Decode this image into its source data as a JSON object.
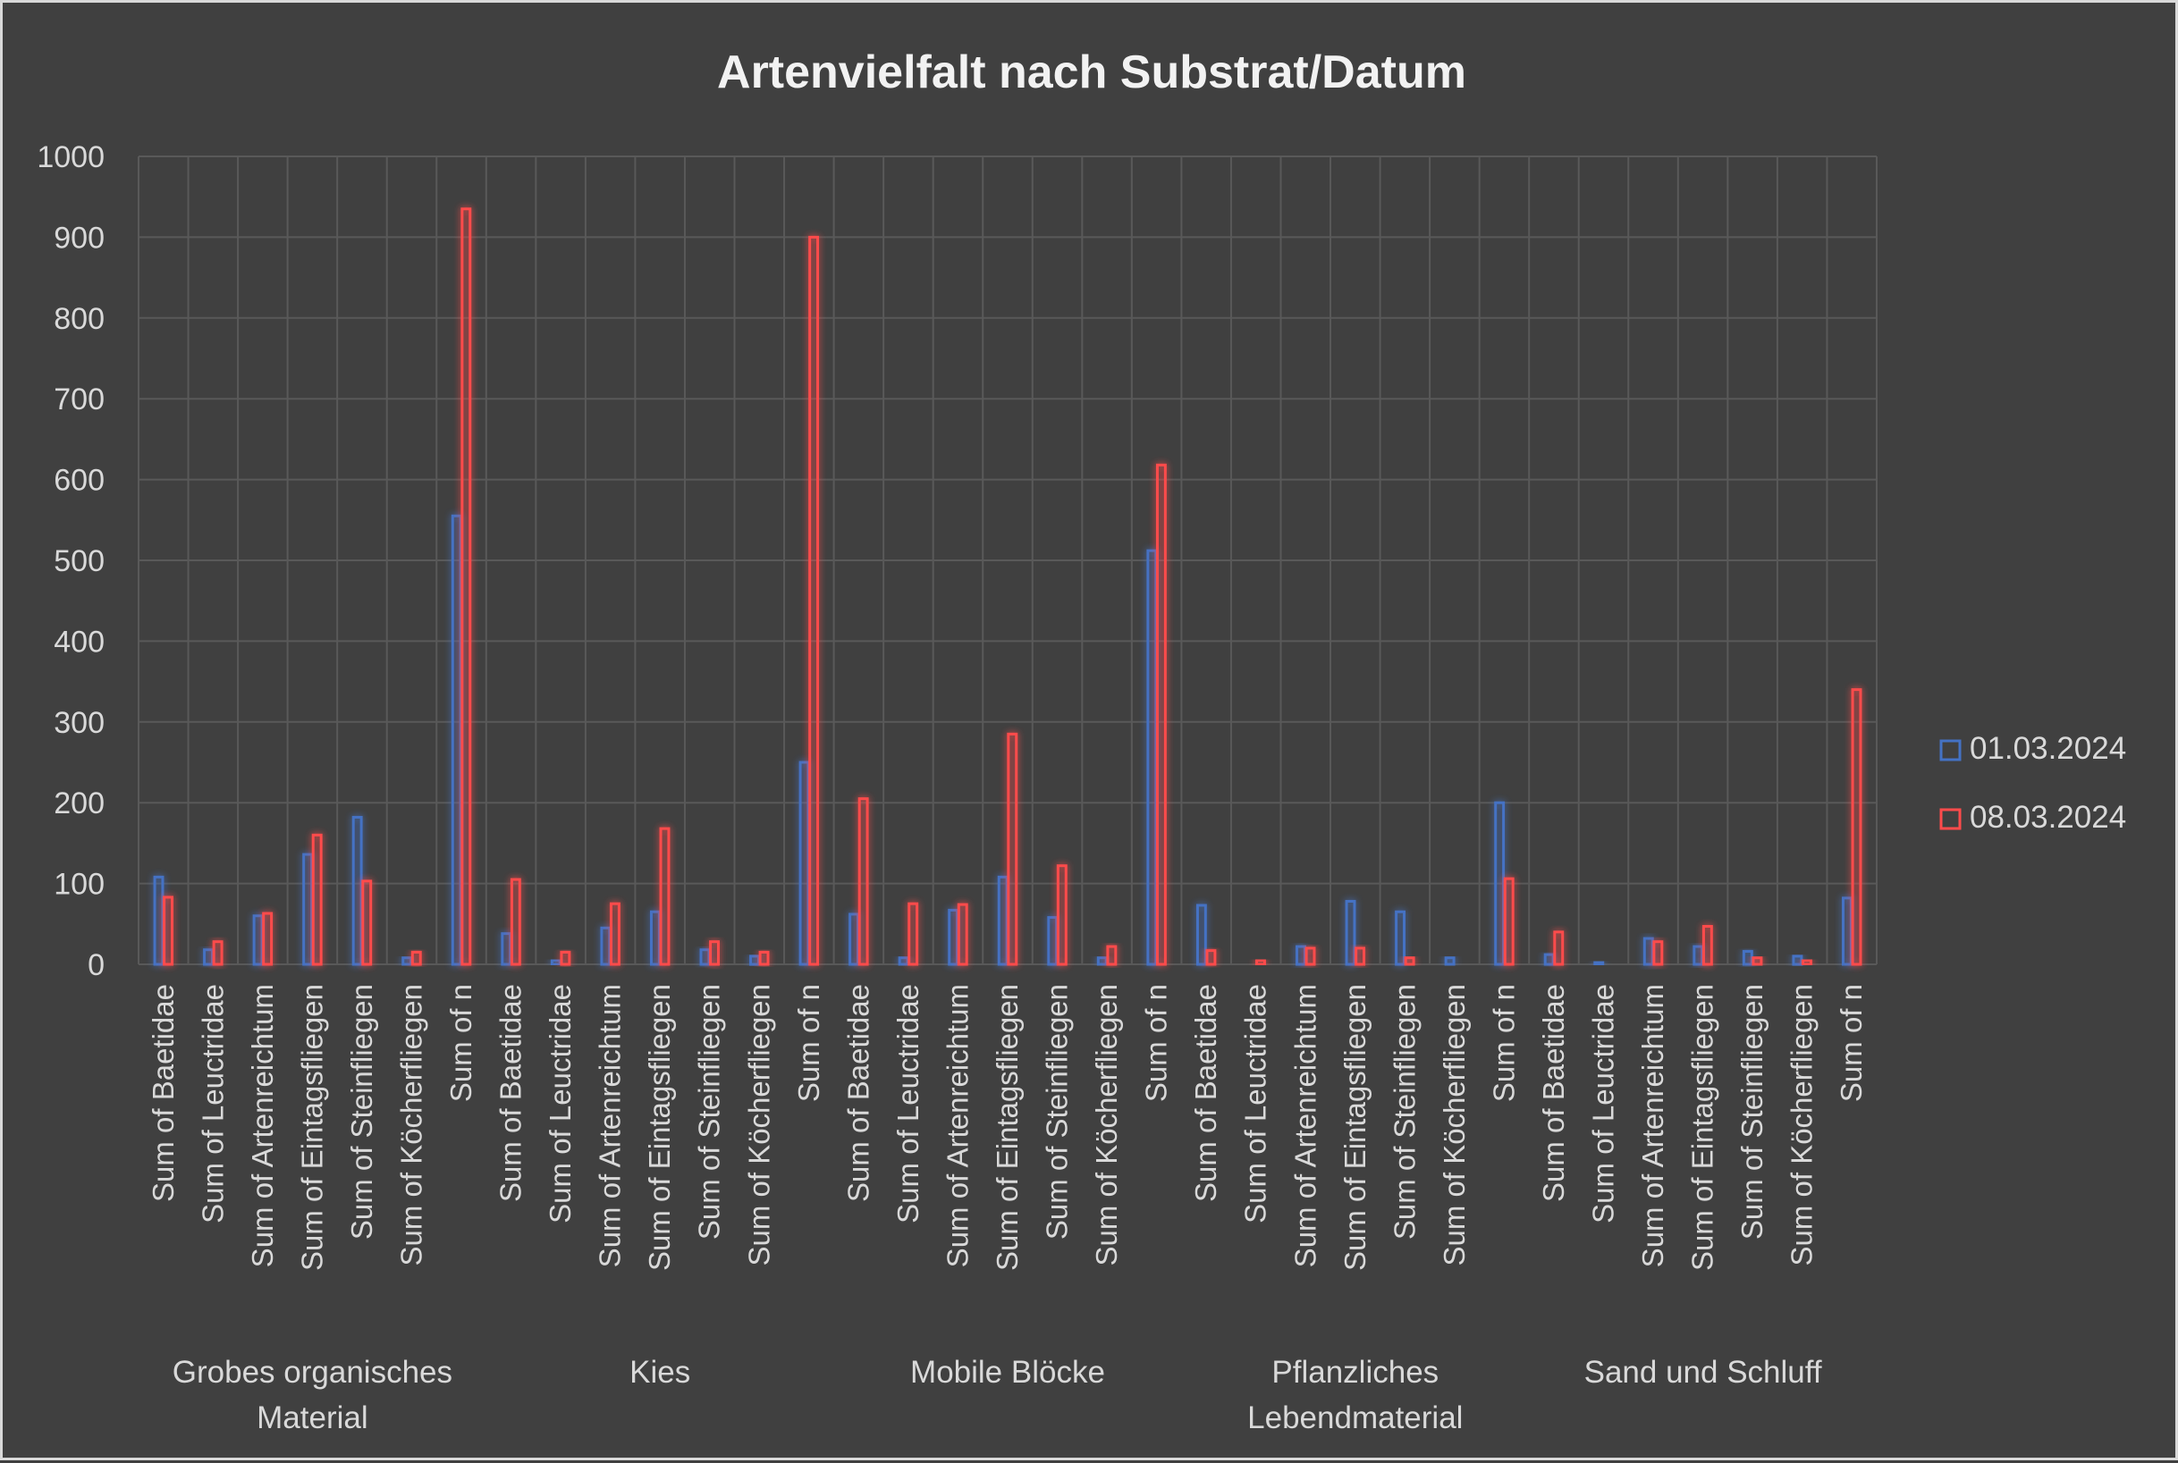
{
  "chart_data": {
    "type": "bar",
    "title": "Artenvielfalt nach Substrat/Datum",
    "ylim": [
      0,
      1000
    ],
    "yticks": [
      0,
      100,
      200,
      300,
      400,
      500,
      600,
      700,
      800,
      900,
      1000
    ],
    "grid": true,
    "legend_position": "right",
    "groups": [
      {
        "name": "Grobes organisches Material",
        "lines": [
          "Grobes organisches",
          "Material"
        ]
      },
      {
        "name": "Kies",
        "lines": [
          "Kies"
        ]
      },
      {
        "name": "Mobile Blöcke",
        "lines": [
          "Mobile Blöcke"
        ]
      },
      {
        "name": "Pflanzliches Lebendmaterial",
        "lines": [
          "Pflanzliches",
          "Lebendmaterial"
        ]
      },
      {
        "name": "Sand und Schluff",
        "lines": [
          "Sand und Schluff"
        ]
      }
    ],
    "category_labels": [
      "Sum of Baetidae",
      "Sum of Leuctridae",
      "Sum of Artenreichtum",
      "Sum of Eintagsfliegen",
      "Sum of Steinfliegen",
      "Sum of Köcherfliegen",
      "Sum of n",
      "Sum of Baetidae",
      "Sum of Leuctridae",
      "Sum of Artenreichtum",
      "Sum of Eintagsfliegen",
      "Sum of Steinfliegen",
      "Sum of Köcherfliegen",
      "Sum of n",
      "Sum of Baetidae",
      "Sum of Leuctridae",
      "Sum of Artenreichtum",
      "Sum of Eintagsfliegen",
      "Sum of Steinfliegen",
      "Sum of Köcherfliegen",
      "Sum of n",
      "Sum of Baetidae",
      "Sum of Leuctridae",
      "Sum of Artenreichtum",
      "Sum of Eintagsfliegen",
      "Sum of Steinfliegen",
      "Sum of Köcherfliegen",
      "Sum of n",
      "Sum of Baetidae",
      "Sum of Leuctridae",
      "Sum of Artenreichtum",
      "Sum of Eintagsfliegen",
      "Sum of Steinfliegen",
      "Sum of Köcherfliegen",
      "Sum of n"
    ],
    "series": [
      {
        "name": "01.03.2024",
        "color": "#4472c4",
        "values": [
          108,
          18,
          60,
          136,
          182,
          8,
          555,
          38,
          5,
          45,
          65,
          18,
          10,
          250,
          62,
          8,
          67,
          108,
          58,
          8,
          512,
          73,
          0,
          22,
          78,
          65,
          8,
          200,
          12,
          3,
          32,
          22,
          16,
          10,
          82
        ]
      },
      {
        "name": "08.03.2024",
        "color": "#ff4b4b",
        "values": [
          83,
          28,
          63,
          160,
          103,
          15,
          935,
          105,
          15,
          75,
          168,
          28,
          15,
          900,
          205,
          75,
          74,
          285,
          122,
          22,
          618,
          17,
          5,
          20,
          20,
          8,
          0,
          106,
          40,
          0,
          28,
          47,
          8,
          5,
          340
        ]
      }
    ]
  }
}
